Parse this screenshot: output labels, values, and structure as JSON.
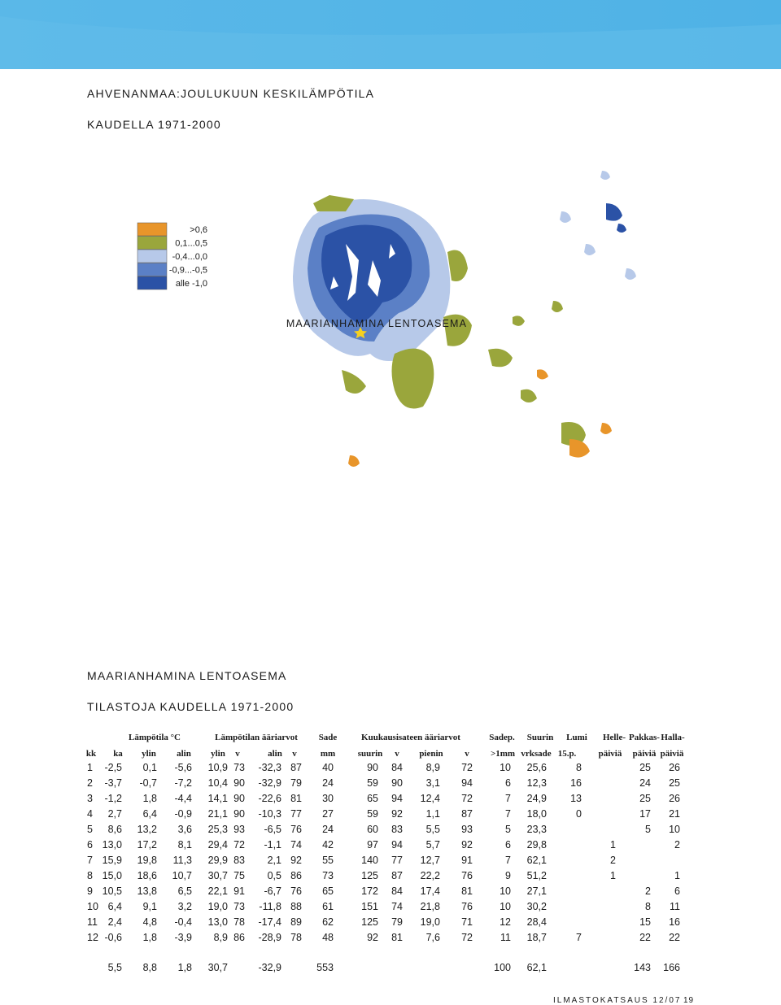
{
  "header": {
    "title": "AHVENANMAA:JOULUKUUN KESKILÄMPÖTILA",
    "subtitle": "KAUDELLA 1971-2000"
  },
  "legend": [
    {
      "label": ">0,6",
      "color": "#e8952a"
    },
    {
      "label": "0,1...0,5",
      "color": "#9aa63c"
    },
    {
      "label": "-0,4...0,0",
      "color": "#b7c9e9"
    },
    {
      "label": "-0,9...-0,5",
      "color": "#5b80c6"
    },
    {
      "label": "alle -1,0",
      "color": "#2b52a6"
    }
  ],
  "map_label": "MAARIANHAMINA LENTOASEMA",
  "table": {
    "title": "MAARIANHAMINA LENTOASEMA",
    "subtitle": "TILASTOJA KAUDELLA 1971-2000",
    "group_headers": [
      "Lämpötila °C",
      "Lämpötilan ääriarvot",
      "Sade",
      "Kuukausisateen ääriarvot",
      "Sadep.",
      "Suurin",
      "Lumi",
      "Helle-",
      "Pakkas-",
      "Halla-"
    ],
    "columns": [
      "kk",
      "ka",
      "ylin",
      "alin",
      "ylin",
      "v",
      "alin",
      "v",
      "mm",
      "suurin",
      "v",
      "pienin",
      "v",
      ">1mm",
      "vrksade",
      "15.p.",
      "päiviä",
      "päiviä",
      "päiviä"
    ],
    "rows": [
      [
        "1",
        "-2,5",
        "0,1",
        "-5,6",
        "10,9",
        "73",
        "-32,3",
        "87",
        "40",
        "90",
        "84",
        "8,9",
        "72",
        "10",
        "25,6",
        "8",
        null,
        "25",
        "26"
      ],
      [
        "2",
        "-3,7",
        "-0,7",
        "-7,2",
        "10,4",
        "90",
        "-32,9",
        "79",
        "24",
        "59",
        "90",
        "3,1",
        "94",
        "6",
        "12,3",
        "16",
        null,
        "24",
        "25"
      ],
      [
        "3",
        "-1,2",
        "1,8",
        "-4,4",
        "14,1",
        "90",
        "-22,6",
        "81",
        "30",
        "65",
        "94",
        "12,4",
        "72",
        "7",
        "24,9",
        "13",
        null,
        "25",
        "26"
      ],
      [
        "4",
        "2,7",
        "6,4",
        "-0,9",
        "21,1",
        "90",
        "-10,3",
        "77",
        "27",
        "59",
        "92",
        "1,1",
        "87",
        "7",
        "18,0",
        "0",
        null,
        "17",
        "21"
      ],
      [
        "5",
        "8,6",
        "13,2",
        "3,6",
        "25,3",
        "93",
        "-6,5",
        "76",
        "24",
        "60",
        "83",
        "5,5",
        "93",
        "5",
        "23,3",
        null,
        null,
        "5",
        "10"
      ],
      [
        "6",
        "13,0",
        "17,2",
        "8,1",
        "29,4",
        "72",
        "-1,1",
        "74",
        "42",
        "97",
        "94",
        "5,7",
        "92",
        "6",
        "29,8",
        null,
        "1",
        null,
        "2"
      ],
      [
        "7",
        "15,9",
        "19,8",
        "11,3",
        "29,9",
        "83",
        "2,1",
        "92",
        "55",
        "140",
        "77",
        "12,7",
        "91",
        "7",
        "62,1",
        null,
        "2",
        null,
        null
      ],
      [
        "8",
        "15,0",
        "18,6",
        "10,7",
        "30,7",
        "75",
        "0,5",
        "86",
        "73",
        "125",
        "87",
        "22,2",
        "76",
        "9",
        "51,2",
        null,
        "1",
        null,
        "1"
      ],
      [
        "9",
        "10,5",
        "13,8",
        "6,5",
        "22,1",
        "91",
        "-6,7",
        "76",
        "65",
        "172",
        "84",
        "17,4",
        "81",
        "10",
        "27,1",
        null,
        null,
        "2",
        "6"
      ],
      [
        "10",
        "6,4",
        "9,1",
        "3,2",
        "19,0",
        "73",
        "-11,8",
        "88",
        "61",
        "151",
        "74",
        "21,8",
        "76",
        "10",
        "30,2",
        null,
        null,
        "8",
        "11"
      ],
      [
        "11",
        "2,4",
        "4,8",
        "-0,4",
        "13,0",
        "78",
        "-17,4",
        "89",
        "62",
        "125",
        "79",
        "19,0",
        "71",
        "12",
        "28,4",
        null,
        null,
        "15",
        "16"
      ],
      [
        "12",
        "-0,6",
        "1,8",
        "-3,9",
        "8,9",
        "86",
        "-28,9",
        "78",
        "48",
        "92",
        "81",
        "7,6",
        "72",
        "11",
        "18,7",
        "7",
        null,
        "22",
        "22"
      ]
    ],
    "total": [
      null,
      "5,5",
      "8,8",
      "1,8",
      "30,7",
      null,
      "-32,9",
      null,
      "553",
      null,
      null,
      null,
      null,
      "100",
      "62,1",
      null,
      null,
      "143",
      "166"
    ]
  },
  "footer": {
    "publication": "ILMASTOKATSAUS 12/07",
    "page": "19"
  }
}
